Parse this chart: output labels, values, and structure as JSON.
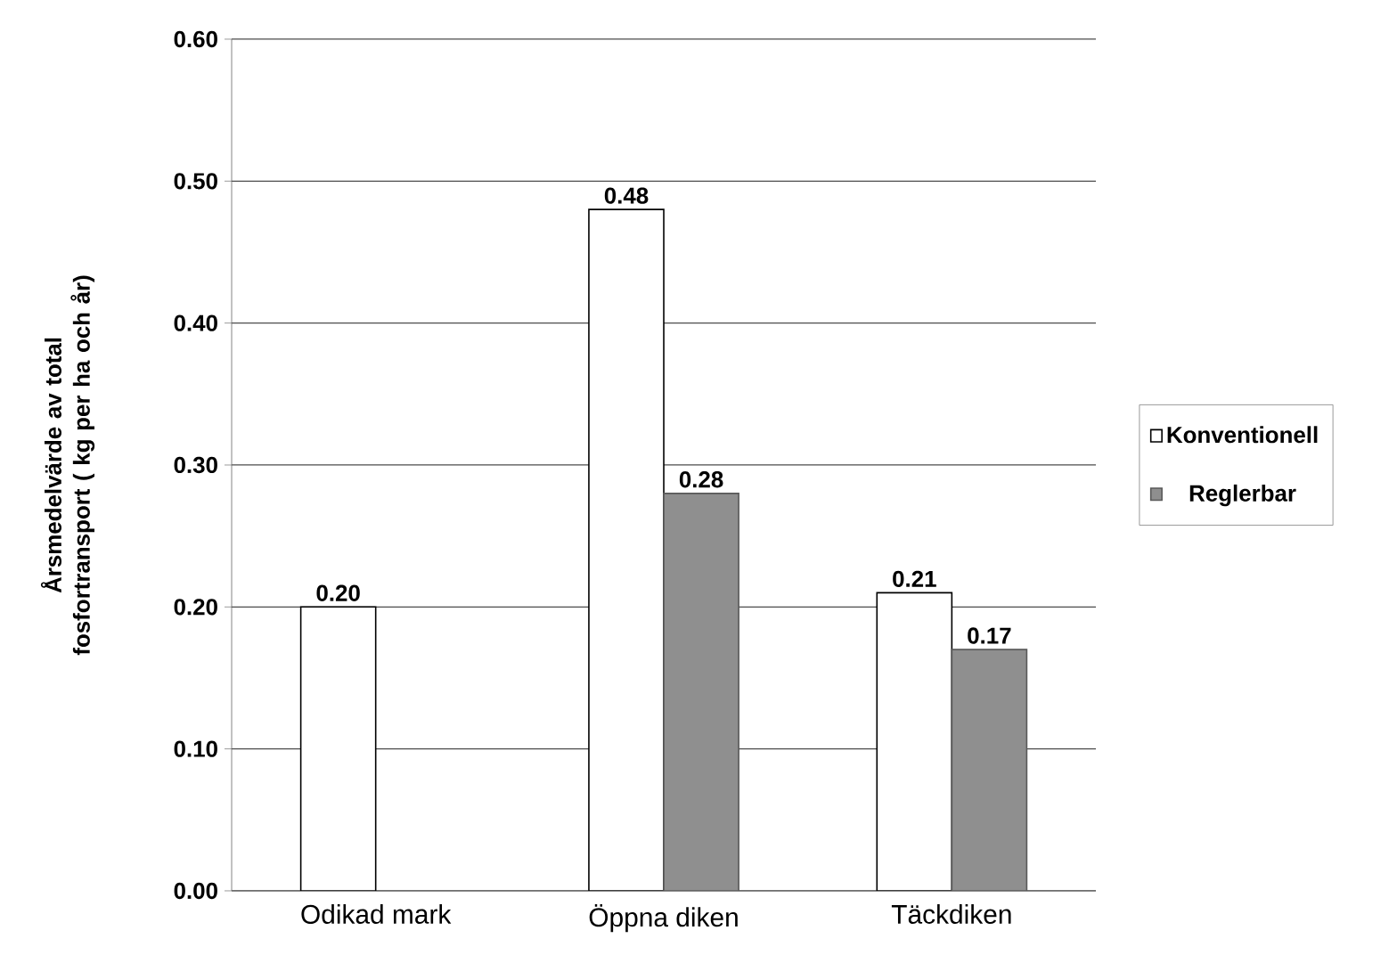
{
  "chart_data": {
    "type": "bar",
    "ylabel": "Årsmedelvärde  av total fosfortransport ( kg per ha och år)",
    "categories": [
      "Odikad mark",
      "Öppna diken",
      "Täckdiken"
    ],
    "series": [
      {
        "name": "Konventionell",
        "color": "#ffffff",
        "values": [
          0.2,
          0.48,
          0.21
        ],
        "value_labels": [
          "0.20",
          "0.48",
          "0.21"
        ]
      },
      {
        "name": "Reglerbar",
        "color": "#8f8f8f",
        "values": [
          null,
          0.28,
          0.17
        ],
        "value_labels": [
          null,
          "0.28",
          "0.17"
        ]
      }
    ],
    "ylim": [
      0,
      0.6
    ],
    "yticks": [
      {
        "value": 0,
        "label": "0.00"
      },
      {
        "value": 0.1,
        "label": "0.10"
      },
      {
        "value": 0.2,
        "label": "0.20"
      },
      {
        "value": 0.3,
        "label": "0.30"
      },
      {
        "value": 0.4,
        "label": "0.40"
      },
      {
        "value": 0.5,
        "label": "0.50"
      },
      {
        "value": 0.6,
        "label": "0.60"
      }
    ],
    "grid": "y",
    "legend": "right"
  }
}
